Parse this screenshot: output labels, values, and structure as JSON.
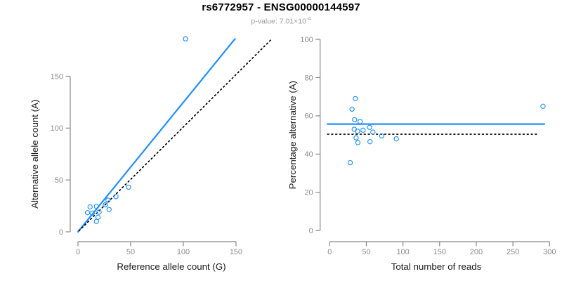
{
  "header": {
    "title": "rs6772957 - ENSG00000144597",
    "pvalue_label": "p-value: ",
    "pvalue_mantissa": "7.01",
    "multiply_sign": "×",
    "pvalue_base": "10",
    "pvalue_exponent": "-4"
  },
  "colors": {
    "accent_blue": "#1E90FF",
    "identity_black": "#000000",
    "axis_gray": "#878787",
    "tick_label_gray": "#8c8c8c",
    "axis_title_color": "#1a1a1a",
    "subtitle_gray": "#9c9c9c"
  },
  "chart_data": [
    {
      "type": "scatter",
      "title": "",
      "xlabel": "Reference allele count (G)",
      "ylabel": "Alternative allele count (A)",
      "xlim": [
        0,
        150
      ],
      "ylim": [
        0,
        150
      ],
      "xticks": [
        0,
        50,
        100,
        150
      ],
      "yticks": [
        0,
        50,
        100,
        150
      ],
      "grid": false,
      "legend": null,
      "points": [
        [
          11.5,
          24
        ],
        [
          17.5,
          24.5
        ],
        [
          9,
          18.5
        ],
        [
          13.5,
          18
        ],
        [
          20,
          19
        ],
        [
          19,
          14
        ],
        [
          17.5,
          10
        ],
        [
          26,
          26
        ],
        [
          29.5,
          21.5
        ],
        [
          28.5,
          30.5
        ],
        [
          36,
          34
        ],
        [
          48,
          43
        ],
        [
          102,
          186
        ]
      ],
      "lines": [
        {
          "name": "regression-line",
          "style": "solid",
          "color": "#1E90FF",
          "from": [
            0,
            0
          ],
          "to": [
            149,
            186
          ]
        },
        {
          "name": "identity-line",
          "style": "dotted",
          "color": "#000000",
          "from": [
            1,
            1
          ],
          "to": [
            184,
            186
          ]
        }
      ]
    },
    {
      "type": "scatter",
      "title": "",
      "xlabel": "Total number of reads",
      "ylabel": "Percentage alternative (A)",
      "xlim": [
        0,
        300
      ],
      "ylim": [
        0,
        100
      ],
      "xticks": [
        0,
        50,
        100,
        150,
        200,
        250,
        300
      ],
      "yticks": [
        0,
        20,
        40,
        60,
        80,
        100
      ],
      "grid": false,
      "legend": null,
      "points": [
        [
          35,
          69
        ],
        [
          30.5,
          63.5
        ],
        [
          34,
          58
        ],
        [
          41.5,
          57
        ],
        [
          33.5,
          53
        ],
        [
          38,
          52
        ],
        [
          45.5,
          52.5
        ],
        [
          54.5,
          54
        ],
        [
          59,
          51.5
        ],
        [
          36,
          48.5
        ],
        [
          38.5,
          46
        ],
        [
          55,
          46.5
        ],
        [
          71,
          49.5
        ],
        [
          91,
          48
        ],
        [
          28,
          35.5
        ],
        [
          291,
          65
        ]
      ],
      "lines": [
        {
          "name": "fit-line",
          "style": "solid",
          "color": "#1E90FF",
          "from": [
            -3,
            55.7
          ],
          "to": [
            293,
            55.7
          ]
        },
        {
          "name": "null-line",
          "style": "dotted",
          "color": "#000000",
          "from": [
            -3,
            50.4
          ],
          "to": [
            286,
            50.4
          ]
        }
      ]
    }
  ]
}
